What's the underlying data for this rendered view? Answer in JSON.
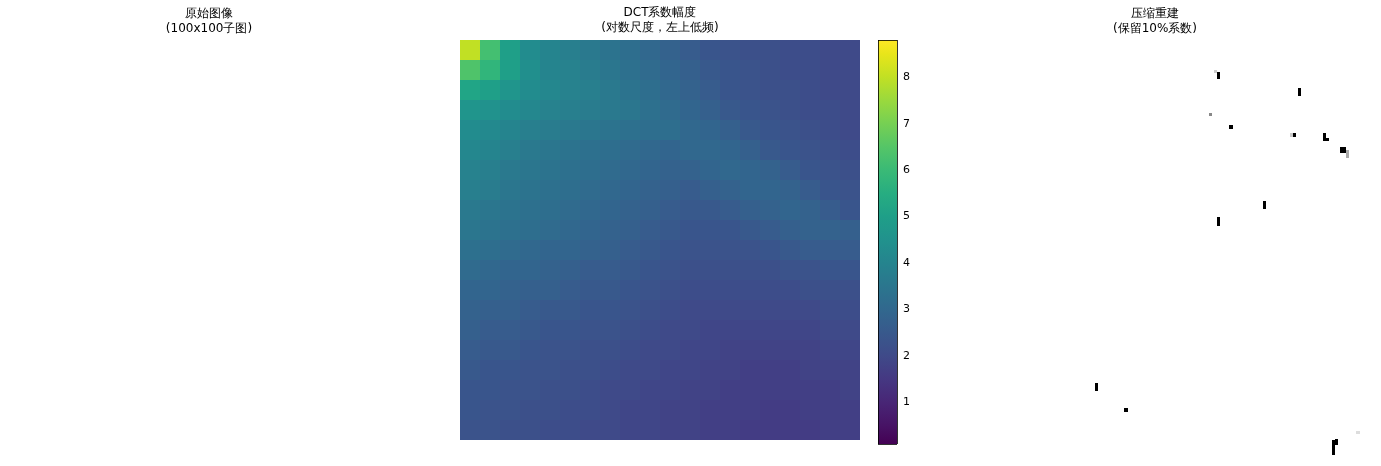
{
  "chart_data": [
    {
      "type": "other",
      "title": "原始图像\n(100x100子图)"
    },
    {
      "type": "heatmap",
      "title": "DCT系数幅度\n(对数尺度，左上低频)",
      "categories": [
        null,
        null,
        null,
        null,
        null,
        null,
        null,
        null,
        null,
        null,
        null,
        null,
        null,
        null,
        null,
        null,
        null,
        null,
        null,
        null
      ],
      "y_categories": [
        null,
        null,
        null,
        null,
        null,
        null,
        null,
        null,
        null,
        null,
        null,
        null,
        null,
        null,
        null,
        null,
        null,
        null,
        null,
        null
      ],
      "cells": [
        [
          8.0,
          6.2,
          5.0,
          4.3,
          4.0,
          3.8,
          3.6,
          3.4,
          3.2,
          3.0,
          2.8,
          2.6,
          2.4,
          2.3,
          2.2,
          2.2,
          2.1,
          2.1,
          2.0,
          2.0
        ],
        [
          6.4,
          5.8,
          5.0,
          4.4,
          4.0,
          3.9,
          3.7,
          3.5,
          3.3,
          3.1,
          2.9,
          2.7,
          2.5,
          2.4,
          2.3,
          2.2,
          2.1,
          2.1,
          2.0,
          2.0
        ],
        [
          5.2,
          5.0,
          4.6,
          4.3,
          4.1,
          3.9,
          3.8,
          3.6,
          3.4,
          3.2,
          3.0,
          2.8,
          2.6,
          2.4,
          2.3,
          2.2,
          2.2,
          2.1,
          2.0,
          2.0
        ],
        [
          4.6,
          4.5,
          4.3,
          4.1,
          3.9,
          3.8,
          3.7,
          3.6,
          3.5,
          3.3,
          3.1,
          2.9,
          2.7,
          2.5,
          2.4,
          2.3,
          2.2,
          2.1,
          2.1,
          2.0
        ],
        [
          4.3,
          4.2,
          4.0,
          3.8,
          3.7,
          3.6,
          3.5,
          3.4,
          3.3,
          3.2,
          3.2,
          3.0,
          2.9,
          2.7,
          2.5,
          2.4,
          2.3,
          2.2,
          2.1,
          2.0
        ],
        [
          4.1,
          4.0,
          3.8,
          3.6,
          3.5,
          3.4,
          3.3,
          3.2,
          3.1,
          3.0,
          2.9,
          3.0,
          3.0,
          2.9,
          2.7,
          2.5,
          2.4,
          2.3,
          2.2,
          2.1
        ],
        [
          3.9,
          3.8,
          3.6,
          3.5,
          3.4,
          3.3,
          3.2,
          3.1,
          3.0,
          2.9,
          2.8,
          2.8,
          2.9,
          3.0,
          2.9,
          2.8,
          2.6,
          2.4,
          2.3,
          2.2
        ],
        [
          3.8,
          3.7,
          3.5,
          3.4,
          3.3,
          3.2,
          3.1,
          3.0,
          2.9,
          2.8,
          2.7,
          2.6,
          2.7,
          2.8,
          2.9,
          2.9,
          2.8,
          2.6,
          2.4,
          2.3
        ],
        [
          3.6,
          3.5,
          3.4,
          3.3,
          3.2,
          3.1,
          3.0,
          2.9,
          2.8,
          2.7,
          2.6,
          2.5,
          2.5,
          2.6,
          2.7,
          2.8,
          2.9,
          2.8,
          2.6,
          2.4
        ],
        [
          3.5,
          3.4,
          3.3,
          3.2,
          3.1,
          3.0,
          2.9,
          2.8,
          2.7,
          2.6,
          2.5,
          2.4,
          2.4,
          2.4,
          2.5,
          2.6,
          2.7,
          2.8,
          2.8,
          2.7
        ],
        [
          3.3,
          3.2,
          3.1,
          3.0,
          2.9,
          2.9,
          2.8,
          2.7,
          2.6,
          2.5,
          2.4,
          2.3,
          2.3,
          2.3,
          2.3,
          2.4,
          2.5,
          2.6,
          2.6,
          2.6
        ],
        [
          3.1,
          3.0,
          2.9,
          2.9,
          2.8,
          2.7,
          2.6,
          2.6,
          2.5,
          2.4,
          2.3,
          2.2,
          2.2,
          2.2,
          2.2,
          2.2,
          2.3,
          2.3,
          2.4,
          2.4
        ],
        [
          2.9,
          2.9,
          2.8,
          2.7,
          2.7,
          2.6,
          2.5,
          2.5,
          2.4,
          2.3,
          2.2,
          2.1,
          2.1,
          2.1,
          2.1,
          2.1,
          2.1,
          2.2,
          2.2,
          2.2
        ],
        [
          2.8,
          2.7,
          2.7,
          2.6,
          2.5,
          2.5,
          2.4,
          2.4,
          2.3,
          2.2,
          2.1,
          2.0,
          2.0,
          2.0,
          2.0,
          2.0,
          2.0,
          2.0,
          2.1,
          2.1
        ],
        [
          2.7,
          2.6,
          2.6,
          2.5,
          2.4,
          2.4,
          2.3,
          2.3,
          2.2,
          2.1,
          2.0,
          2.0,
          1.9,
          1.9,
          1.9,
          1.9,
          1.9,
          1.9,
          2.0,
          2.0
        ],
        [
          2.6,
          2.5,
          2.5,
          2.4,
          2.3,
          2.3,
          2.2,
          2.2,
          2.1,
          2.0,
          2.0,
          1.9,
          1.9,
          1.8,
          1.8,
          1.8,
          1.8,
          1.8,
          1.9,
          1.9
        ],
        [
          2.5,
          2.4,
          2.4,
          2.3,
          2.3,
          2.2,
          2.2,
          2.1,
          2.0,
          2.0,
          1.9,
          1.9,
          1.8,
          1.8,
          1.7,
          1.7,
          1.7,
          1.8,
          1.8,
          1.8
        ],
        [
          2.4,
          2.4,
          2.3,
          2.3,
          2.2,
          2.2,
          2.1,
          2.0,
          2.0,
          1.9,
          1.9,
          1.8,
          1.8,
          1.7,
          1.7,
          1.7,
          1.7,
          1.7,
          1.7,
          1.8
        ],
        [
          2.4,
          2.3,
          2.3,
          2.2,
          2.2,
          2.1,
          2.1,
          2.0,
          1.9,
          1.9,
          1.8,
          1.8,
          1.7,
          1.7,
          1.7,
          1.6,
          1.6,
          1.7,
          1.7,
          1.7
        ],
        [
          2.3,
          2.3,
          2.2,
          2.2,
          2.1,
          2.1,
          2.0,
          2.0,
          1.9,
          1.9,
          1.8,
          1.8,
          1.7,
          1.7,
          1.6,
          1.6,
          1.6,
          1.6,
          1.7,
          1.7
        ]
      ],
      "clim": [
        0.1,
        8.8
      ],
      "cticks": [
        1,
        2,
        3,
        4,
        5,
        6,
        7,
        8
      ],
      "tick_labels": false
    },
    {
      "type": "other",
      "title": "压缩重建\n(保留10%系数)"
    }
  ]
}
